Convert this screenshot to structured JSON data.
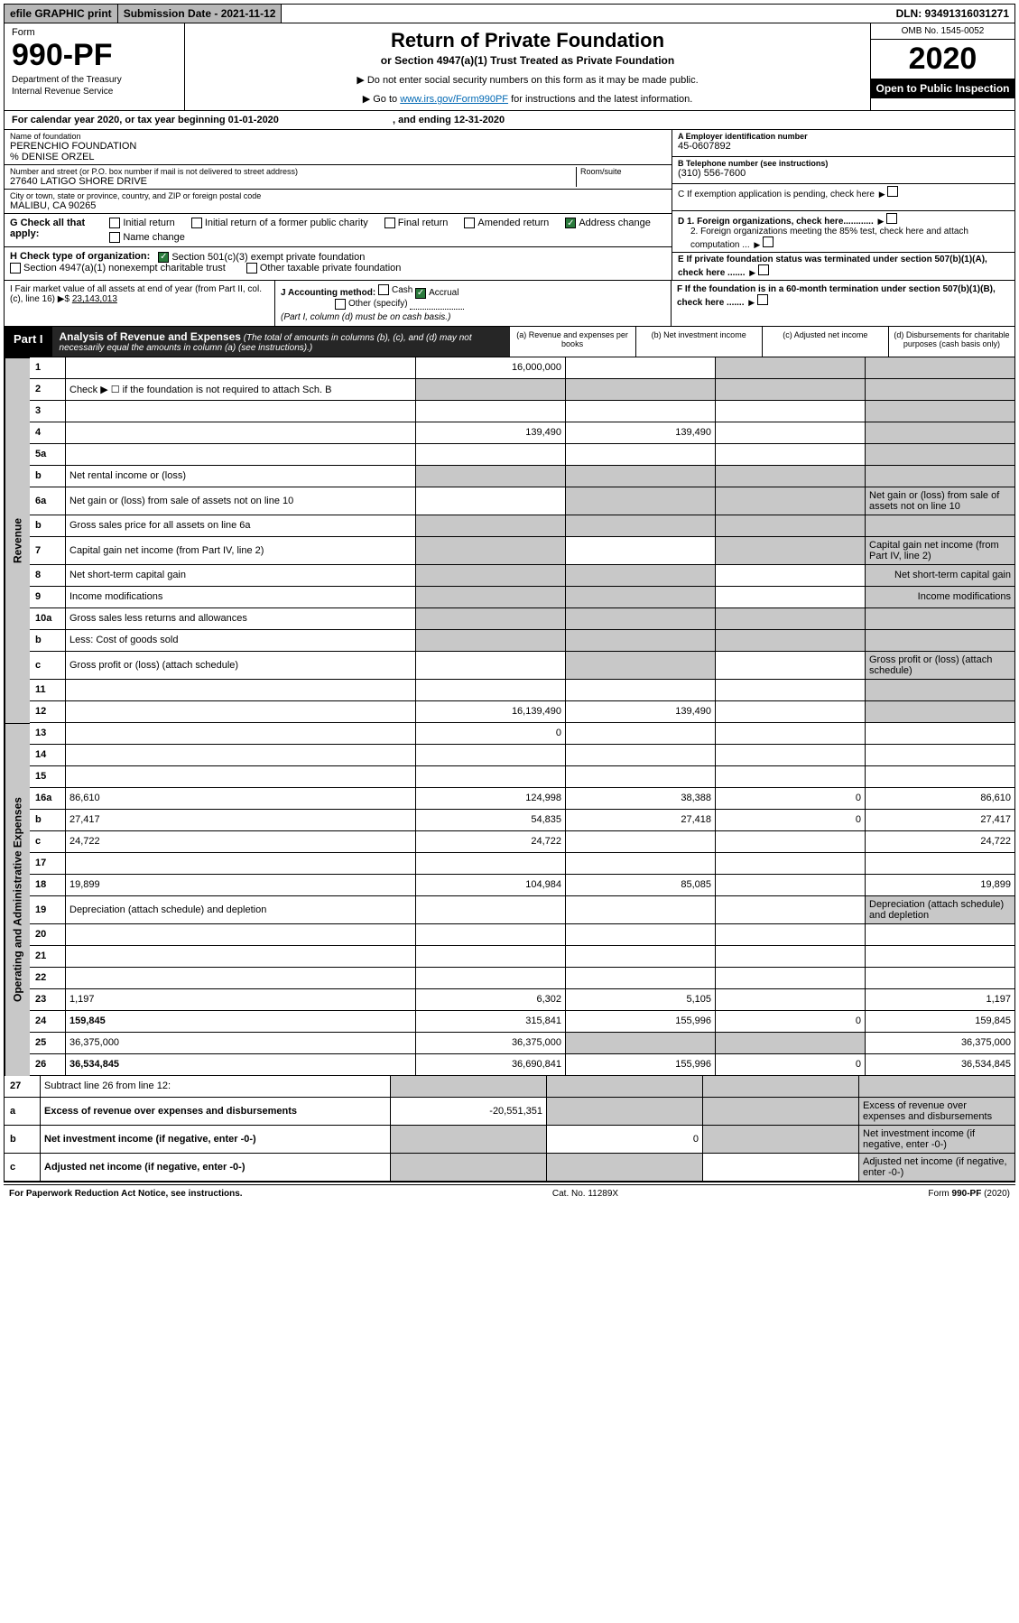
{
  "topbar": {
    "efile": "efile GRAPHIC print",
    "submission": "Submission Date - 2021-11-12",
    "dln": "DLN: 93491316031271"
  },
  "formhead": {
    "form": "Form",
    "number": "990-PF",
    "dept": "Department of the Treasury",
    "irs": "Internal Revenue Service",
    "title": "Return of Private Foundation",
    "subtitle": "or Section 4947(a)(1) Trust Treated as Private Foundation",
    "warn1": "▶ Do not enter social security numbers on this form as it may be made public.",
    "warn2_pre": "▶ Go to ",
    "warn2_link": "www.irs.gov/Form990PF",
    "warn2_post": " for instructions and the latest information.",
    "omb": "OMB No. 1545-0052",
    "year": "2020",
    "open": "Open to Public Inspection"
  },
  "calyear": {
    "text": "For calendar year 2020, or tax year beginning 01-01-2020",
    "end": ", and ending 12-31-2020"
  },
  "id": {
    "name_lab": "Name of foundation",
    "name": "PERENCHIO FOUNDATION",
    "care": "% DENISE ORZEL",
    "addr_lab": "Number and street (or P.O. box number if mail is not delivered to street address)",
    "addr": "27640 LATIGO SHORE DRIVE",
    "room_lab": "Room/suite",
    "city_lab": "City or town, state or province, country, and ZIP or foreign postal code",
    "city": "MALIBU, CA  90265",
    "ein_lab": "A Employer identification number",
    "ein": "45-0607892",
    "tel_lab": "B Telephone number (see instructions)",
    "tel": "(310) 556-7600",
    "c": "C If exemption application is pending, check here",
    "d1": "D 1. Foreign organizations, check here............",
    "d2": "2. Foreign organizations meeting the 85% test, check here and attach computation ...",
    "e": "E If private foundation status was terminated under section 507(b)(1)(A), check here .......",
    "f": "F If the foundation is in a 60-month termination under section 507(b)(1)(B), check here ......."
  },
  "g": {
    "label": "G Check all that apply:",
    "initial": "Initial return",
    "final": "Final return",
    "address": "Address change",
    "initial_former": "Initial return of a former public charity",
    "amended": "Amended return",
    "name": "Name change"
  },
  "h": {
    "label": "H Check type of organization:",
    "501c3": "Section 501(c)(3) exempt private foundation",
    "4947": "Section 4947(a)(1) nonexempt charitable trust",
    "other_tax": "Other taxable private foundation"
  },
  "ijf": {
    "i_lab": "I Fair market value of all assets at end of year (from Part II, col. (c), line 16) ▶$ ",
    "i_val": "23,143,013",
    "j_lab": "J Accounting method:",
    "j_cash": "Cash",
    "j_accrual": "Accrual",
    "j_other": "Other (specify)",
    "j_note": "(Part I, column (d) must be on cash basis.)"
  },
  "part1": {
    "label": "Part I",
    "title": "Analysis of Revenue and Expenses",
    "note": "(The total of amounts in columns (b), (c), and (d) may not necessarily equal the amounts in column (a) (see instructions).)",
    "cols": {
      "a": "(a) Revenue and expenses per books",
      "b": "(b) Net investment income",
      "c": "(c) Adjusted net income",
      "d": "(d) Disbursements for charitable purposes (cash basis only)"
    }
  },
  "sides": {
    "revenue": "Revenue",
    "opex": "Operating and Administrative Expenses"
  },
  "rows": {
    "r1": {
      "n": "1",
      "d": "",
      "a": "16,000,000",
      "b": "",
      "c": "",
      "grayc": true,
      "grayd": true
    },
    "r2": {
      "n": "2",
      "d": "Check ▶ ☐ if the foundation is not required to attach Sch. B",
      "gray_all": true
    },
    "r3": {
      "n": "3",
      "d": "",
      "a": "",
      "b": "",
      "c": "",
      "grayd": true
    },
    "r4": {
      "n": "4",
      "d": "",
      "a": "139,490",
      "b": "139,490",
      "c": "",
      "grayd": true
    },
    "r5a": {
      "n": "5a",
      "d": "",
      "a": "",
      "b": "",
      "c": "",
      "grayd": true
    },
    "r5b": {
      "n": "b",
      "d": "Net rental income or (loss)",
      "gray_all": true
    },
    "r6a": {
      "n": "6a",
      "d": "Net gain or (loss) from sale of assets not on line 10",
      "a": "",
      "grayb": true,
      "grayc": true,
      "grayd": true
    },
    "r6b": {
      "n": "b",
      "d": "Gross sales price for all assets on line 6a",
      "gray_all": true
    },
    "r7": {
      "n": "7",
      "d": "Capital gain net income (from Part IV, line 2)",
      "graya": true,
      "b": "",
      "grayc": true,
      "grayd": true
    },
    "r8": {
      "n": "8",
      "d": "Net short-term capital gain",
      "graya": true,
      "grayb": true,
      "c": "",
      "grayd": true
    },
    "r9": {
      "n": "9",
      "d": "Income modifications",
      "graya": true,
      "grayb": true,
      "c": "",
      "grayd": true
    },
    "r10a": {
      "n": "10a",
      "d": "Gross sales less returns and allowances",
      "gray_all": true
    },
    "r10b": {
      "n": "b",
      "d": "Less: Cost of goods sold",
      "gray_all": true
    },
    "r10c": {
      "n": "c",
      "d": "Gross profit or (loss) (attach schedule)",
      "a": "",
      "grayb": true,
      "c": "",
      "grayd": true
    },
    "r11": {
      "n": "11",
      "d": "",
      "a": "",
      "b": "",
      "c": "",
      "grayd": true
    },
    "r12": {
      "n": "12",
      "d": "",
      "bold": true,
      "a": "16,139,490",
      "b": "139,490",
      "c": "",
      "grayd": true
    },
    "r13": {
      "n": "13",
      "d": "",
      "a": "0",
      "b": "",
      "c": ""
    },
    "r14": {
      "n": "14",
      "d": "",
      "a": "",
      "b": "",
      "c": ""
    },
    "r15": {
      "n": "15",
      "d": "",
      "a": "",
      "b": "",
      "c": ""
    },
    "r16a": {
      "n": "16a",
      "d": "86,610",
      "a": "124,998",
      "b": "38,388",
      "c": "0"
    },
    "r16b": {
      "n": "b",
      "d": "27,417",
      "a": "54,835",
      "b": "27,418",
      "c": "0"
    },
    "r16c": {
      "n": "c",
      "d": "24,722",
      "a": "24,722",
      "b": "",
      "c": ""
    },
    "r17": {
      "n": "17",
      "d": "",
      "a": "",
      "b": "",
      "c": ""
    },
    "r18": {
      "n": "18",
      "d": "19,899",
      "a": "104,984",
      "b": "85,085",
      "c": ""
    },
    "r19": {
      "n": "19",
      "d": "Depreciation (attach schedule) and depletion",
      "a": "",
      "b": "",
      "c": "",
      "grayd": true
    },
    "r20": {
      "n": "20",
      "d": "",
      "a": "",
      "b": "",
      "c": ""
    },
    "r21": {
      "n": "21",
      "d": "",
      "a": "",
      "b": "",
      "c": ""
    },
    "r22": {
      "n": "22",
      "d": "",
      "a": "",
      "b": "",
      "c": ""
    },
    "r23": {
      "n": "23",
      "d": "1,197",
      "a": "6,302",
      "b": "5,105",
      "c": ""
    },
    "r24": {
      "n": "24",
      "d": "159,845",
      "bold": true,
      "a": "315,841",
      "b": "155,996",
      "c": "0"
    },
    "r25": {
      "n": "25",
      "d": "36,375,000",
      "a": "36,375,000",
      "grayb": true,
      "grayc": true
    },
    "r26": {
      "n": "26",
      "d": "36,534,845",
      "bold": true,
      "a": "36,690,841",
      "b": "155,996",
      "c": "0"
    },
    "r27": {
      "n": "27",
      "d": "Subtract line 26 from line 12:",
      "gray_all": true
    },
    "r27a": {
      "n": "a",
      "d": "Excess of revenue over expenses and disbursements",
      "bold": true,
      "a": "-20,551,351",
      "grayb": true,
      "grayc": true,
      "grayd": true
    },
    "r27b": {
      "n": "b",
      "d": "Net investment income (if negative, enter -0-)",
      "bold": true,
      "graya": true,
      "b": "0",
      "grayc": true,
      "grayd": true
    },
    "r27c": {
      "n": "c",
      "d": "Adjusted net income (if negative, enter -0-)",
      "bold": true,
      "graya": true,
      "grayb": true,
      "c": "",
      "grayd": true
    }
  },
  "footer": {
    "left": "For Paperwork Reduction Act Notice, see instructions.",
    "mid": "Cat. No. 11289X",
    "right": "Form 990-PF (2020)"
  }
}
